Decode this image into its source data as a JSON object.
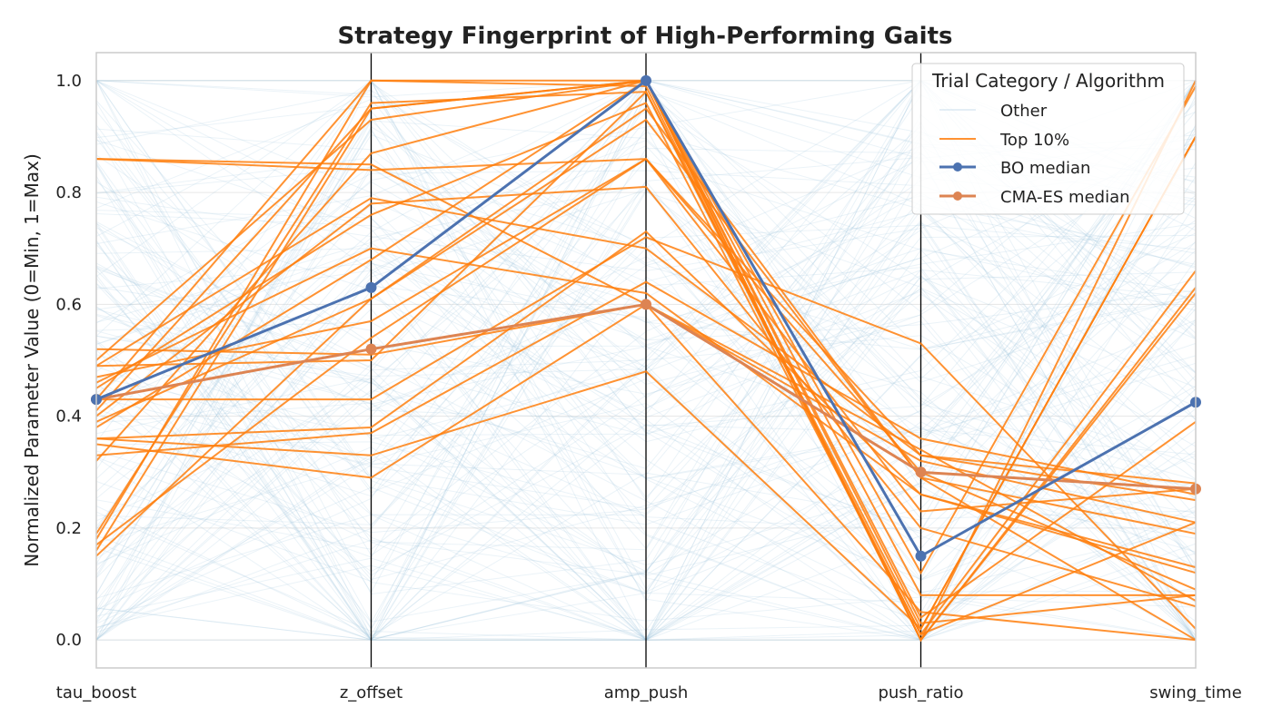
{
  "chart_data": {
    "type": "line",
    "subtype": "parallel-coordinates",
    "title": "Strategy Fingerprint of High-Performing Gaits",
    "ylabel": "Normalized Parameter Value (0=Min, 1=Max)",
    "xlabel": "",
    "ylim": [
      -0.05,
      1.05
    ],
    "yticks": [
      "0.0",
      "0.2",
      "0.4",
      "0.6",
      "0.8",
      "1.0"
    ],
    "yticks_values": [
      0,
      0.2,
      0.4,
      0.6,
      0.8,
      1.0
    ],
    "categories": [
      "tau_boost",
      "z_offset",
      "amp_push",
      "push_ratio",
      "swing_time"
    ],
    "grid": true,
    "legend": {
      "title": "Trial Category / Algorithm",
      "position": "top-right",
      "entries": [
        "Other",
        "Top 10%",
        "BO median",
        "CMA-ES median"
      ]
    },
    "colors": {
      "other": "#a6c8e0",
      "top": "#ff7f0e",
      "bo": "#4c72b0",
      "cma": "#dd8452",
      "axis_line": "#000000"
    },
    "series": [
      {
        "name": "BO median",
        "values": [
          0.43,
          0.63,
          1.0,
          0.15,
          0.425
        ]
      },
      {
        "name": "CMA-ES median",
        "values": [
          0.43,
          0.52,
          0.6,
          0.3,
          0.27
        ]
      }
    ],
    "top10_lines": [
      [
        0.86,
        0.84,
        0.86,
        0.33,
        0.25
      ],
      [
        0.86,
        0.85,
        0.6,
        0.32,
        0.21
      ],
      [
        0.52,
        0.51,
        0.6,
        0.34,
        0.07
      ],
      [
        0.5,
        0.93,
        1.0,
        0.0,
        0.62
      ],
      [
        0.49,
        0.5,
        0.98,
        0.02,
        0.9
      ],
      [
        0.49,
        0.79,
        0.7,
        0.33,
        0.28
      ],
      [
        0.47,
        0.57,
        0.86,
        0.3,
        0.09
      ],
      [
        0.46,
        0.7,
        0.62,
        0.26,
        0.12
      ],
      [
        0.45,
        0.76,
        0.96,
        0.01,
        0.66
      ],
      [
        0.43,
        1.0,
        0.99,
        0.0,
        1.0
      ],
      [
        0.43,
        0.43,
        0.72,
        0.53,
        0.02
      ],
      [
        0.41,
        0.95,
        1.0,
        0.08,
        0.08
      ],
      [
        0.4,
        0.78,
        0.81,
        0.2,
        0.06
      ],
      [
        0.39,
        0.61,
        0.93,
        0.29,
        0.0
      ],
      [
        0.38,
        0.68,
        1.0,
        0.04,
        0.39
      ],
      [
        0.36,
        0.33,
        0.48,
        0.02,
        0.9
      ],
      [
        0.36,
        0.38,
        0.73,
        0.26,
        0.13
      ],
      [
        0.35,
        0.29,
        0.6,
        0.05,
        0.0
      ],
      [
        0.33,
        0.37,
        0.64,
        0.36,
        0.26
      ],
      [
        0.32,
        0.87,
        1.0,
        0.0,
        0.63
      ],
      [
        0.19,
        0.96,
        0.98,
        0.01,
        0.21
      ],
      [
        0.18,
        1.0,
        1.0,
        0.12,
        0.99
      ],
      [
        0.17,
        0.54,
        0.86,
        0.23,
        0.27
      ],
      [
        0.16,
        0.95,
        1.0,
        0.03,
        0.08
      ],
      [
        0.15,
        0.61,
        0.95,
        0.29,
        0.19
      ]
    ],
    "other_line_count": 160
  }
}
